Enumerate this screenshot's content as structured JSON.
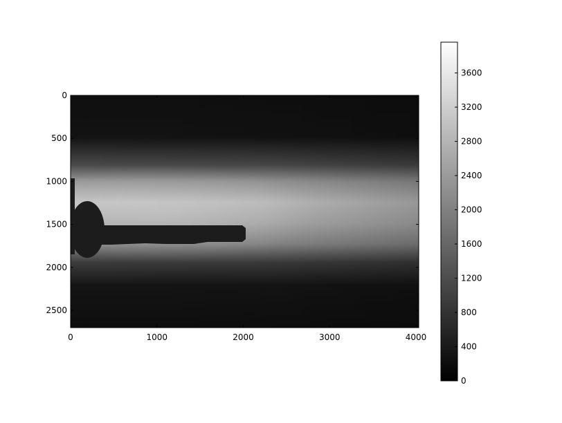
{
  "chart_data": {
    "type": "heatmap",
    "title": "",
    "xlabel": "",
    "ylabel": "",
    "colormap": "gray",
    "xlim": [
      0,
      4032
    ],
    "ylim": [
      2700,
      0
    ],
    "x_ticks": [
      {
        "value": 0,
        "label": "0"
      },
      {
        "value": 1000,
        "label": "1000"
      },
      {
        "value": 2000,
        "label": "2000"
      },
      {
        "value": 3000,
        "label": "3000"
      },
      {
        "value": 4000,
        "label": "4000"
      }
    ],
    "y_ticks": [
      {
        "value": 0,
        "label": "0"
      },
      {
        "value": 500,
        "label": "500"
      },
      {
        "value": 1000,
        "label": "1000"
      },
      {
        "value": 1500,
        "label": "1500"
      },
      {
        "value": 2000,
        "label": "2000"
      },
      {
        "value": 2500,
        "label": "2500"
      }
    ],
    "colorbar": {
      "range": [
        0,
        3960
      ],
      "ticks": [
        {
          "value": 0,
          "label": "0"
        },
        {
          "value": 400,
          "label": "400"
        },
        {
          "value": 800,
          "label": "800"
        },
        {
          "value": 1200,
          "label": "1200"
        },
        {
          "value": 1600,
          "label": "1600"
        },
        {
          "value": 2000,
          "label": "2000"
        },
        {
          "value": 2400,
          "label": "2400"
        },
        {
          "value": 2800,
          "label": "2800"
        },
        {
          "value": 3200,
          "label": "3200"
        },
        {
          "value": 3600,
          "label": "3600"
        }
      ]
    },
    "image_description_values": {
      "background_intensity": 150,
      "beam_peak_intensity": 3000,
      "beam_center_y": 1400,
      "shadow_object": {
        "round_end_center_x": 175,
        "round_end_center_y": 1550,
        "rod_x_end": 2020,
        "rod_y_top": 1520,
        "rod_y_bottom": 1700
      }
    }
  }
}
